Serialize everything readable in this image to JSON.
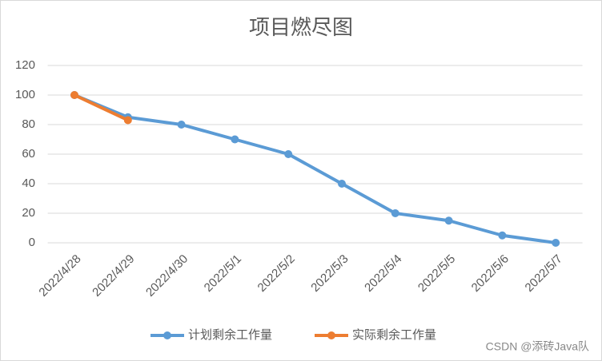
{
  "chart_data": {
    "type": "line",
    "title": "项目燃尽图",
    "categories": [
      "2022/4/28",
      "2022/4/29",
      "2022/4/30",
      "2022/5/1",
      "2022/5/2",
      "2022/5/3",
      "2022/5/4",
      "2022/5/5",
      "2022/5/6",
      "2022/5/7"
    ],
    "series": [
      {
        "name": "计划剩余工作量",
        "color": "#5b9bd5",
        "values": [
          100,
          85,
          80,
          70,
          60,
          40,
          20,
          15,
          5,
          0
        ]
      },
      {
        "name": "实际剩余工作量",
        "color": "#ed7d31",
        "values": [
          100,
          83,
          null,
          null,
          null,
          null,
          null,
          null,
          null,
          null
        ]
      }
    ],
    "ylim": [
      0,
      120
    ],
    "yticks": [
      0,
      20,
      40,
      60,
      80,
      100,
      120
    ],
    "grid": true,
    "legend": "bottom",
    "watermark": "CSDN @添砖Java队"
  }
}
